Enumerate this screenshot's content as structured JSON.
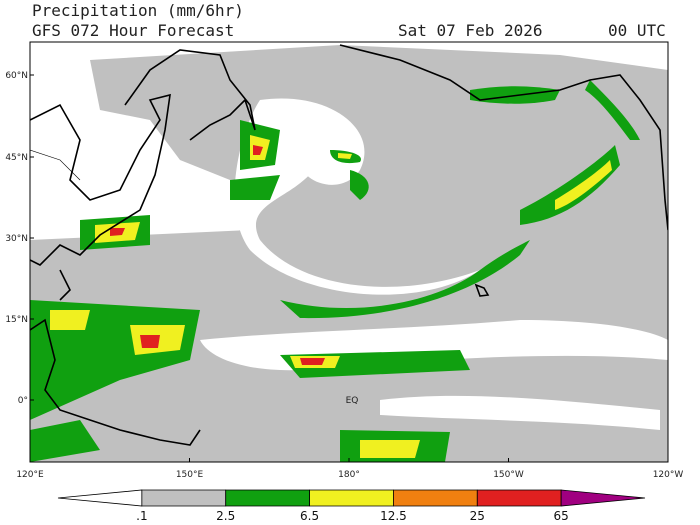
{
  "header": {
    "title": "Precipitation (mm/6hr)",
    "subtitle": "GFS 072 Hour Forecast",
    "date": "Sat 07 Feb 2026",
    "time": "00 UTC"
  },
  "map": {
    "latitude_labels": [
      "60°N",
      "45°N",
      "30°N",
      "15°N",
      "0°"
    ],
    "longitude_labels": [
      "120°E",
      "150°E",
      "180°",
      "150°W",
      "120°W"
    ],
    "equator_label": "EQ"
  },
  "colorbar": {
    "labels": [
      ".1",
      "2.5",
      "6.5",
      "12.5",
      "25",
      "65"
    ],
    "colors": [
      "#ffffff",
      "#c0c0c0",
      "#10a010",
      "#f0f020",
      "#f08010",
      "#e02020",
      "#a00080"
    ]
  }
}
